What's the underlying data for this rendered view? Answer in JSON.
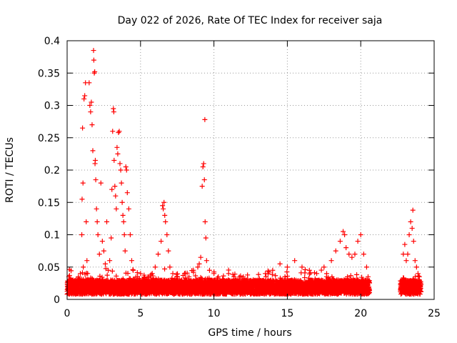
{
  "chart_data": {
    "type": "scatter",
    "title": "Day 022 of 2026, Rate Of TEC Index for receiver saja",
    "xlabel": "GPS time / hours",
    "ylabel": "ROTI / TECUs",
    "xlim": [
      0,
      25
    ],
    "ylim": [
      0,
      0.4
    ],
    "x_ticks": [
      0,
      5,
      10,
      15,
      20,
      25
    ],
    "x_tick_labels": [
      "0",
      "5",
      "10",
      "15",
      "20",
      "25"
    ],
    "y_ticks": [
      0,
      0.05,
      0.1,
      0.15,
      0.2,
      0.25,
      0.3,
      0.35,
      0.4
    ],
    "y_tick_labels": [
      "0",
      "0.05",
      "0.1",
      "0.15",
      "0.2",
      "0.25",
      "0.3",
      "0.35",
      "0.4"
    ],
    "grid": true,
    "legend": "none",
    "marker": "plus",
    "series_color": "#ff0000",
    "points": [
      [
        0.05,
        0.02
      ],
      [
        0.12,
        0.035
      ],
      [
        0.2,
        0.025
      ],
      [
        0.3,
        0.015
      ],
      [
        0.4,
        0.03
      ],
      [
        0.5,
        0.022
      ],
      [
        0.6,
        0.018
      ],
      [
        0.7,
        0.03
      ],
      [
        0.8,
        0.026
      ],
      [
        0.9,
        0.04
      ],
      [
        1.0,
        0.1
      ],
      [
        1.02,
        0.155
      ],
      [
        1.05,
        0.265
      ],
      [
        1.08,
        0.18
      ],
      [
        1.1,
        0.05
      ],
      [
        1.15,
        0.31
      ],
      [
        1.2,
        0.315
      ],
      [
        1.25,
        0.335
      ],
      [
        1.3,
        0.12
      ],
      [
        1.35,
        0.06
      ],
      [
        1.4,
        0.04
      ],
      [
        1.5,
        0.335
      ],
      [
        1.55,
        0.3
      ],
      [
        1.6,
        0.29
      ],
      [
        1.65,
        0.305
      ],
      [
        1.7,
        0.27
      ],
      [
        1.75,
        0.23
      ],
      [
        1.8,
        0.385
      ],
      [
        1.82,
        0.37
      ],
      [
        1.85,
        0.35
      ],
      [
        1.88,
        0.352
      ],
      [
        1.9,
        0.21
      ],
      [
        1.92,
        0.215
      ],
      [
        1.95,
        0.185
      ],
      [
        2.0,
        0.14
      ],
      [
        2.05,
        0.12
      ],
      [
        2.1,
        0.1
      ],
      [
        2.2,
        0.07
      ],
      [
        2.3,
        0.18
      ],
      [
        2.4,
        0.09
      ],
      [
        2.5,
        0.075
      ],
      [
        2.6,
        0.055
      ],
      [
        2.7,
        0.12
      ],
      [
        2.8,
        0.045
      ],
      [
        2.9,
        0.06
      ],
      [
        3.0,
        0.095
      ],
      [
        3.05,
        0.17
      ],
      [
        3.1,
        0.26
      ],
      [
        3.15,
        0.295
      ],
      [
        3.18,
        0.29
      ],
      [
        3.2,
        0.215
      ],
      [
        3.25,
        0.175
      ],
      [
        3.3,
        0.16
      ],
      [
        3.35,
        0.14
      ],
      [
        3.4,
        0.235
      ],
      [
        3.45,
        0.225
      ],
      [
        3.5,
        0.258
      ],
      [
        3.55,
        0.26
      ],
      [
        3.6,
        0.21
      ],
      [
        3.65,
        0.2
      ],
      [
        3.7,
        0.18
      ],
      [
        3.75,
        0.15
      ],
      [
        3.8,
        0.13
      ],
      [
        3.85,
        0.12
      ],
      [
        3.9,
        0.1
      ],
      [
        3.95,
        0.075
      ],
      [
        4.0,
        0.205
      ],
      [
        4.05,
        0.2
      ],
      [
        4.1,
        0.165
      ],
      [
        4.2,
        0.14
      ],
      [
        4.3,
        0.1
      ],
      [
        4.4,
        0.06
      ],
      [
        4.5,
        0.045
      ],
      [
        4.6,
        0.03
      ],
      [
        4.8,
        0.035
      ],
      [
        5.0,
        0.04
      ],
      [
        5.2,
        0.03
      ],
      [
        5.5,
        0.035
      ],
      [
        5.8,
        0.04
      ],
      [
        6.0,
        0.05
      ],
      [
        6.2,
        0.07
      ],
      [
        6.4,
        0.09
      ],
      [
        6.5,
        0.145
      ],
      [
        6.55,
        0.14
      ],
      [
        6.6,
        0.15
      ],
      [
        6.65,
        0.13
      ],
      [
        6.7,
        0.12
      ],
      [
        6.8,
        0.1
      ],
      [
        6.9,
        0.075
      ],
      [
        7.0,
        0.05
      ],
      [
        7.2,
        0.04
      ],
      [
        7.5,
        0.035
      ],
      [
        7.8,
        0.03
      ],
      [
        8.0,
        0.04
      ],
      [
        8.3,
        0.035
      ],
      [
        8.6,
        0.045
      ],
      [
        8.9,
        0.05
      ],
      [
        9.0,
        0.055
      ],
      [
        9.1,
        0.065
      ],
      [
        9.2,
        0.175
      ],
      [
        9.25,
        0.205
      ],
      [
        9.3,
        0.21
      ],
      [
        9.35,
        0.185
      ],
      [
        9.38,
        0.278
      ],
      [
        9.4,
        0.12
      ],
      [
        9.45,
        0.095
      ],
      [
        9.5,
        0.06
      ],
      [
        9.7,
        0.045
      ],
      [
        10.0,
        0.04
      ],
      [
        10.3,
        0.035
      ],
      [
        10.6,
        0.03
      ],
      [
        11.0,
        0.04
      ],
      [
        11.5,
        0.03
      ],
      [
        12.0,
        0.035
      ],
      [
        12.5,
        0.028
      ],
      [
        13.0,
        0.03
      ],
      [
        13.5,
        0.04
      ],
      [
        14.0,
        0.045
      ],
      [
        14.5,
        0.055
      ],
      [
        15.0,
        0.05
      ],
      [
        15.5,
        0.06
      ],
      [
        16.0,
        0.05
      ],
      [
        16.5,
        0.045
      ],
      [
        17.0,
        0.04
      ],
      [
        17.5,
        0.05
      ],
      [
        18.0,
        0.06
      ],
      [
        18.3,
        0.075
      ],
      [
        18.6,
        0.09
      ],
      [
        18.8,
        0.105
      ],
      [
        18.9,
        0.1
      ],
      [
        19.0,
        0.08
      ],
      [
        19.2,
        0.07
      ],
      [
        19.4,
        0.065
      ],
      [
        19.6,
        0.07
      ],
      [
        19.8,
        0.09
      ],
      [
        20.0,
        0.1
      ],
      [
        20.2,
        0.07
      ],
      [
        20.4,
        0.05
      ],
      [
        20.5,
        0.035
      ],
      [
        22.9,
        0.07
      ],
      [
        23.0,
        0.085
      ],
      [
        23.1,
        0.06
      ],
      [
        23.2,
        0.07
      ],
      [
        23.3,
        0.1
      ],
      [
        23.4,
        0.12
      ],
      [
        23.5,
        0.11
      ],
      [
        23.55,
        0.138
      ],
      [
        23.6,
        0.09
      ],
      [
        23.7,
        0.06
      ],
      [
        23.8,
        0.05
      ],
      [
        23.9,
        0.04
      ],
      [
        24.0,
        0.03
      ]
    ]
  }
}
